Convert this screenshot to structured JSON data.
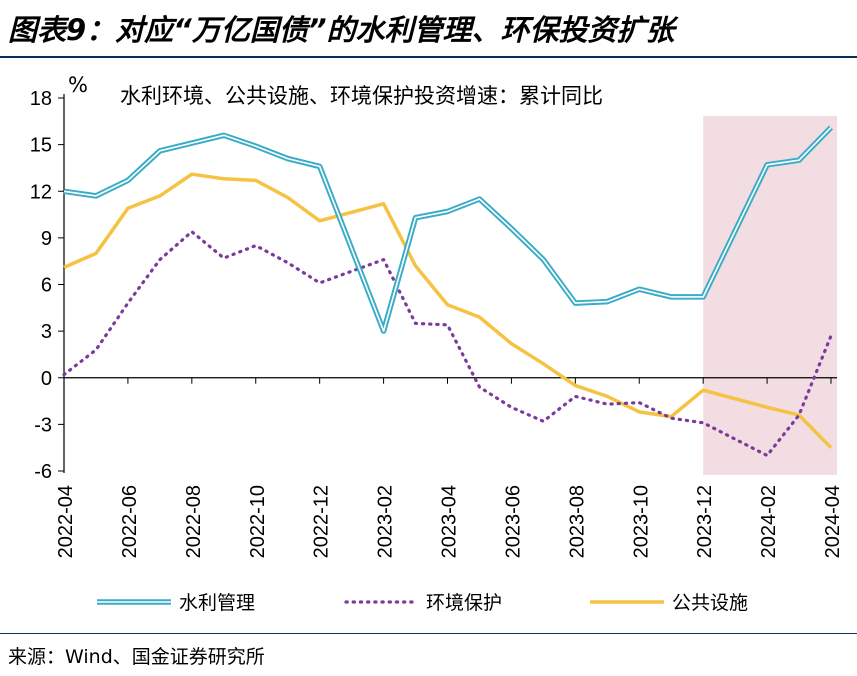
{
  "title": "图表9：对应“万亿国债”的水利管理、环保投资扩张",
  "source": "来源：Wind、国金证券研究所",
  "chart_data": {
    "type": "line",
    "subtitle": "水利环境、公共设施、环境保护投资增速：累计同比",
    "ylabel": "%",
    "ylim": [
      -6,
      18
    ],
    "yticks": [
      18,
      15,
      12,
      9,
      6,
      3,
      0,
      -3,
      -6
    ],
    "x": [
      "2022-04",
      "2022-05",
      "2022-06",
      "2022-07",
      "2022-08",
      "2022-09",
      "2022-10",
      "2022-11",
      "2022-12",
      "2023-02",
      "2023-03",
      "2023-04",
      "2023-05",
      "2023-06",
      "2023-07",
      "2023-08",
      "2023-09",
      "2023-10",
      "2023-11",
      "2023-12",
      "2024-02",
      "2024-03",
      "2024-04"
    ],
    "xticklabels": [
      "2022-04",
      "2022-06",
      "2022-08",
      "2022-10",
      "2022-12",
      "2023-02",
      "2023-04",
      "2023-06",
      "2023-08",
      "2023-10",
      "2023-12",
      "2024-02",
      "2024-04"
    ],
    "shaded_range": [
      "2023-12",
      "2024-04"
    ],
    "grid": false,
    "legend_position": "bottom",
    "series": [
      {
        "name": "水利管理",
        "color": "#3aacc6",
        "style": "double",
        "values": [
          12.0,
          11.7,
          12.7,
          14.6,
          15.1,
          15.6,
          14.9,
          14.1,
          13.6,
          3.0,
          10.3,
          10.7,
          11.5,
          9.6,
          7.6,
          4.8,
          4.9,
          5.7,
          5.2,
          5.2,
          13.7,
          14.0,
          16.1
        ]
      },
      {
        "name": "环境保护",
        "color": "#7a3b9c",
        "style": "dotted",
        "values": [
          0.2,
          1.8,
          4.8,
          7.6,
          9.4,
          7.7,
          8.5,
          7.4,
          6.1,
          7.6,
          3.5,
          3.4,
          -0.6,
          -1.9,
          -2.8,
          -1.2,
          -1.7,
          -1.6,
          -2.6,
          -2.9,
          -5.0,
          -2.4,
          2.7
        ]
      },
      {
        "name": "公共设施",
        "color": "#f5c242",
        "style": "solid",
        "values": [
          7.1,
          8.0,
          10.9,
          11.7,
          13.1,
          12.8,
          12.7,
          11.6,
          10.1,
          11.2,
          7.2,
          4.7,
          3.9,
          2.2,
          0.9,
          -0.5,
          -1.2,
          -2.2,
          -2.5,
          -0.8,
          -1.9,
          -2.4,
          -4.5
        ]
      }
    ]
  }
}
